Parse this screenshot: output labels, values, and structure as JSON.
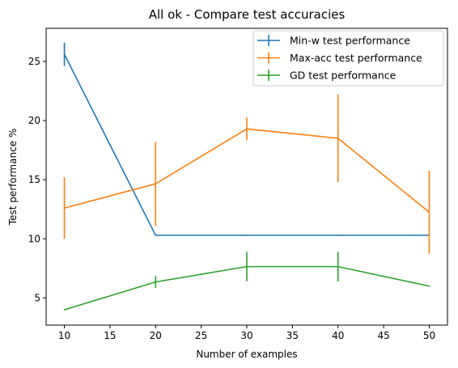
{
  "chart_data": {
    "type": "line",
    "title": "All ok - Compare test accuracies",
    "xlabel": "Number of examples",
    "ylabel": "Test performance %",
    "xlim": [
      8,
      52
    ],
    "ylim": [
      2.7,
      27.8
    ],
    "xticks": [
      10,
      15,
      20,
      25,
      30,
      35,
      40,
      45,
      50
    ],
    "yticks": [
      5,
      10,
      15,
      20,
      25
    ],
    "grid": false,
    "legend_position": "top-right",
    "x": [
      10,
      20,
      30,
      40,
      50
    ],
    "series": [
      {
        "name": "Min-w test performance",
        "color": "#1f77b4",
        "values": [
          25.6,
          10.3,
          10.3,
          10.3,
          10.3
        ],
        "errors": [
          1.0,
          0,
          0,
          0,
          0
        ]
      },
      {
        "name": "Max-acc test performance",
        "color": "#ff7f0e",
        "values": [
          12.6,
          14.65,
          19.3,
          18.5,
          12.25
        ],
        "errors": [
          2.6,
          3.55,
          0.95,
          3.7,
          3.5
        ]
      },
      {
        "name": "GD test performance",
        "color": "#2ca02c",
        "values": [
          4.0,
          6.35,
          7.65,
          7.65,
          6.0
        ],
        "errors": [
          0,
          0.5,
          1.25,
          1.25,
          0
        ]
      }
    ]
  }
}
